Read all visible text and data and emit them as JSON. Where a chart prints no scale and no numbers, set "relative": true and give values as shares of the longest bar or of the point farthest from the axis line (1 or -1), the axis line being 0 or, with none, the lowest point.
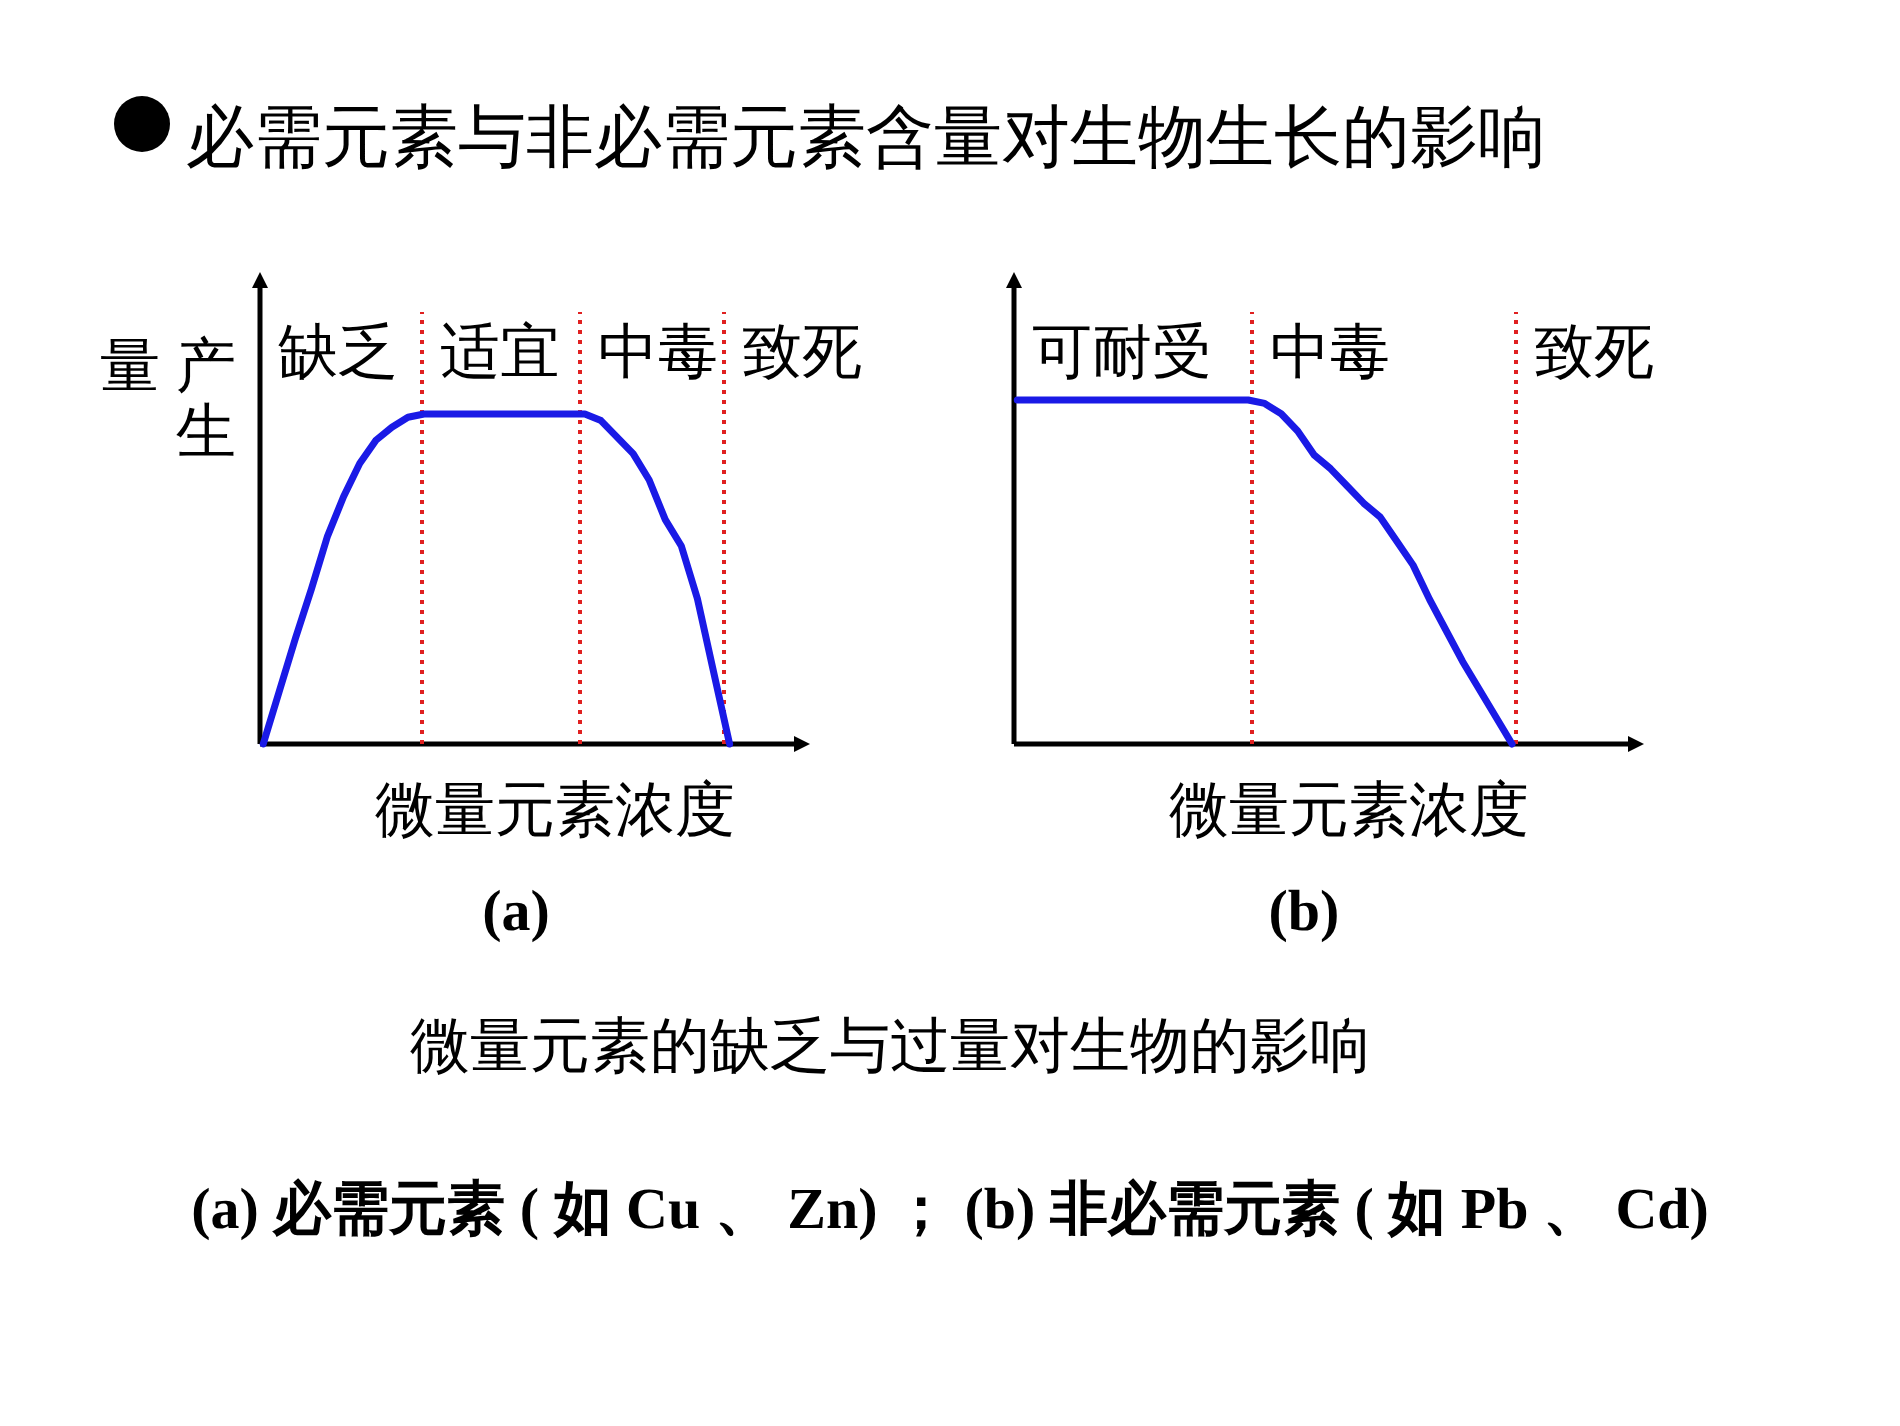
{
  "chart_data": [
    {
      "type": "line",
      "title": "必需元素与非必需元素含量对生物生长的影响",
      "ylabel": "产生量",
      "xlabel": "微量元素浓度",
      "relative": true,
      "categories": [
        null,
        null,
        null,
        null,
        null,
        null,
        null,
        null,
        null,
        null,
        null,
        null,
        null,
        null,
        null,
        null,
        null,
        null,
        null,
        null,
        null,
        null,
        null,
        null,
        null,
        null,
        null,
        null,
        null,
        null,
        null,
        null,
        null,
        null
      ],
      "series": [
        {
          "color": "#1a1ae6",
          "values": [
            0,
            0.16,
            0.32,
            0.47,
            0.63,
            0.75,
            0.85,
            0.92,
            0.96,
            0.99,
            1,
            1,
            1,
            1,
            1,
            1,
            1,
            1,
            1,
            1,
            1,
            0.98,
            0.93,
            0.88,
            0.8,
            0.68,
            0.6,
            0.44,
            0.22,
            0,
            null,
            null,
            null,
            null
          ]
        }
      ],
      "annotations": [
        "缺乏",
        "适宜",
        "中毒",
        "致死",
        "(a)"
      ]
    },
    {
      "type": "line",
      "xlabel": "微量元素浓度",
      "relative": true,
      "categories": [
        null,
        null,
        null,
        null,
        null,
        null,
        null,
        null,
        null,
        null,
        null,
        null,
        null,
        null,
        null,
        null,
        null,
        null,
        null,
        null,
        null,
        null,
        null,
        null,
        null,
        null,
        null,
        null,
        null,
        null,
        null,
        null,
        null,
        null,
        null,
        null,
        null,
        null
      ],
      "series": [
        {
          "color": "#1a1ae6",
          "values": [
            1,
            1,
            1,
            1,
            1,
            1,
            1,
            1,
            1,
            1,
            1,
            1,
            1,
            1,
            1,
            0.99,
            0.96,
            0.91,
            0.84,
            0.8,
            0.75,
            0.7,
            0.66,
            0.59,
            0.52,
            0.42,
            0.33,
            0.24,
            0.16,
            0.08,
            0,
            null,
            null,
            null,
            null,
            null,
            null,
            null
          ]
        }
      ],
      "annotations": [
        "可耐受",
        "中毒",
        "致死",
        "(b)"
      ]
    },
    {
      "type": "other",
      "annotations": [
        "微量元素的缺乏与过量对生物的影响",
        "(a)  必需元素 ( 如 Cu 、 Zn) ；  (b)  非必需元素 ( 如 Pb 、 Cd)"
      ]
    }
  ]
}
